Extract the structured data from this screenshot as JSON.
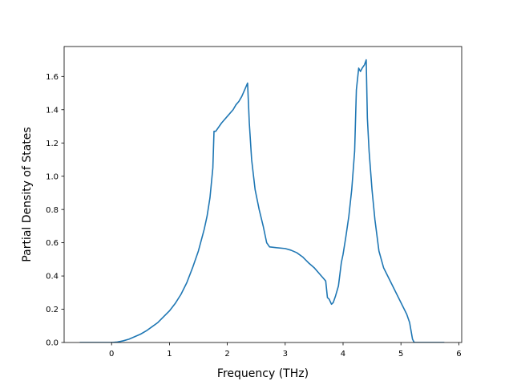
{
  "chart_data": {
    "type": "line",
    "title": "",
    "xlabel": "Frequency (THz)",
    "ylabel": "Partial Density of States",
    "xlim": [
      -0.82,
      6.05
    ],
    "ylim": [
      0.0,
      1.78
    ],
    "xticks": [
      0,
      1,
      2,
      3,
      4,
      5,
      6
    ],
    "yticks": [
      0.0,
      0.2,
      0.4,
      0.6,
      0.8,
      1.0,
      1.2,
      1.4,
      1.6
    ],
    "ytick_labels": [
      "0.0",
      "0.2",
      "0.4",
      "0.6",
      "0.8",
      "1.0",
      "1.2",
      "1.4",
      "1.6"
    ],
    "grid": false,
    "legend": "none",
    "series": [
      {
        "color": "#1f77b4",
        "x": [
          -0.55,
          -0.3,
          0.0,
          0.1,
          0.2,
          0.3,
          0.4,
          0.5,
          0.6,
          0.7,
          0.8,
          0.9,
          1.0,
          1.1,
          1.2,
          1.3,
          1.4,
          1.5,
          1.6,
          1.65,
          1.7,
          1.75,
          1.77,
          1.8,
          1.9,
          2.0,
          2.1,
          2.15,
          2.2,
          2.25,
          2.3,
          2.35,
          2.38,
          2.42,
          2.48,
          2.55,
          2.62,
          2.68,
          2.73,
          2.85,
          3.0,
          3.1,
          3.2,
          3.3,
          3.4,
          3.5,
          3.6,
          3.65,
          3.7,
          3.73,
          3.76,
          3.8,
          3.83,
          3.87,
          3.92,
          3.97,
          4.0,
          4.05,
          4.1,
          4.15,
          4.2,
          4.23,
          4.27,
          4.3,
          4.33,
          4.37,
          4.4,
          4.42,
          4.45,
          4.5,
          4.55,
          4.62,
          4.7,
          4.8,
          4.9,
          5.0,
          5.1,
          5.15,
          5.2,
          5.23,
          5.5,
          5.75
        ],
        "y": [
          0.0,
          0.0,
          0.0,
          0.003,
          0.01,
          0.02,
          0.035,
          0.05,
          0.07,
          0.095,
          0.12,
          0.155,
          0.19,
          0.235,
          0.29,
          0.36,
          0.45,
          0.55,
          0.68,
          0.76,
          0.87,
          1.05,
          1.27,
          1.27,
          1.32,
          1.36,
          1.4,
          1.43,
          1.45,
          1.48,
          1.52,
          1.56,
          1.32,
          1.1,
          0.92,
          0.8,
          0.7,
          0.6,
          0.575,
          0.57,
          0.565,
          0.555,
          0.54,
          0.515,
          0.48,
          0.45,
          0.41,
          0.39,
          0.37,
          0.27,
          0.26,
          0.23,
          0.24,
          0.28,
          0.34,
          0.48,
          0.53,
          0.64,
          0.76,
          0.92,
          1.15,
          1.52,
          1.65,
          1.63,
          1.65,
          1.67,
          1.7,
          1.35,
          1.15,
          0.92,
          0.74,
          0.55,
          0.45,
          0.38,
          0.31,
          0.24,
          0.17,
          0.12,
          0.02,
          0.0,
          0.0,
          0.0
        ]
      }
    ]
  }
}
